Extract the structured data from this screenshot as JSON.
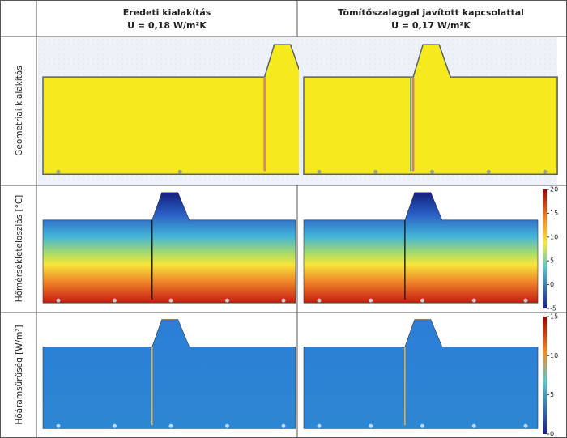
{
  "header": {
    "columns": [
      {
        "title": "Eredeti kialakítás",
        "subtitle": "U = 0,18 W/m²K"
      },
      {
        "title": "Tömítőszalaggal javított kapcsolattal",
        "subtitle": "U = 0,17 W/m²K"
      }
    ]
  },
  "rows": [
    {
      "label": "Geometriai kialakítás"
    },
    {
      "label": "Hőmérsékleteloszlás [°C]",
      "colorbar": {
        "ticks": [
          20,
          15,
          10,
          5,
          0,
          -5
        ]
      }
    },
    {
      "label": "Hőáramsűrűség [W/m²]",
      "colorbar": {
        "ticks": [
          15,
          10,
          5,
          0
        ]
      }
    }
  ]
}
